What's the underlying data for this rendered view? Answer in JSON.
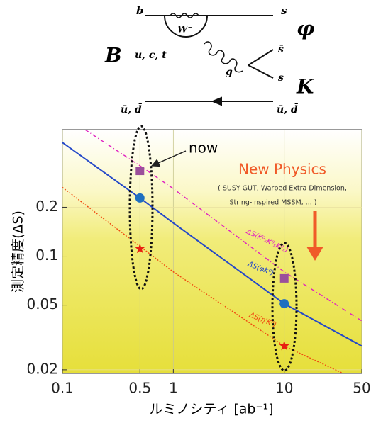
{
  "diagram": {
    "b": "b",
    "s_top": "s",
    "phi": "φ",
    "w": "W⁻",
    "meson_b": "B",
    "quarks": "u, c, t",
    "gluon": "g",
    "s_bar": "s̄",
    "s_mid": "s",
    "kaon": "K",
    "ud_left": "ū, d̄",
    "ud_right": "ū, d̄"
  },
  "chart_data": {
    "type": "line",
    "xlabel": "ルミノシティ [ab⁻¹]",
    "ylabel": "測定精度(ΔS)",
    "xlim": [
      0.1,
      50
    ],
    "ylim": [
      0.019,
      0.6
    ],
    "xlog": true,
    "ylog": true,
    "xticks": [
      0.1,
      0.5,
      1,
      10,
      50
    ],
    "yticks": [
      0.02,
      0.05,
      0.1,
      0.2
    ],
    "grid": true,
    "annotations": {
      "now": "now",
      "new_physics": "New Physics",
      "models_1": "( SUSY GUT, Warped Extra Dimension,",
      "models_2": "String-inspired MSSM, ... )"
    },
    "series": [
      {
        "name": "ΔS(K⁰ₛK⁰ₛK⁰ₛ)",
        "color": "#e020c0",
        "dash": "dashdot",
        "x": [
          0.16,
          0.5,
          1,
          10,
          50
        ],
        "values": [
          0.6,
          0.36,
          0.26,
          0.08,
          0.04
        ],
        "marker": "square",
        "marker_color": "#9b4f9b",
        "points_x": [
          0.5,
          10
        ],
        "points": [
          0.335,
          0.073
        ]
      },
      {
        "name": "ΔS(φK⁰)",
        "color": "#2448c8",
        "dash": "solid",
        "x": [
          0.1,
          0.5,
          1,
          10,
          50
        ],
        "values": [
          0.5,
          0.228,
          0.16,
          0.051,
          0.028
        ],
        "marker": "circle",
        "marker_color": "#1f6fc0",
        "points_x": [
          0.5,
          10
        ],
        "points": [
          0.228,
          0.051
        ]
      },
      {
        "name": "ΔS(η′K⁰)",
        "color": "#f04a10",
        "dash": "dotted",
        "x": [
          0.1,
          0.5,
          1,
          10,
          34
        ],
        "values": [
          0.265,
          0.115,
          0.08,
          0.028,
          0.019
        ],
        "marker": "star",
        "marker_color": "#e82010",
        "points_x": [
          0.5,
          10
        ],
        "points": [
          0.111,
          0.028
        ]
      }
    ]
  }
}
